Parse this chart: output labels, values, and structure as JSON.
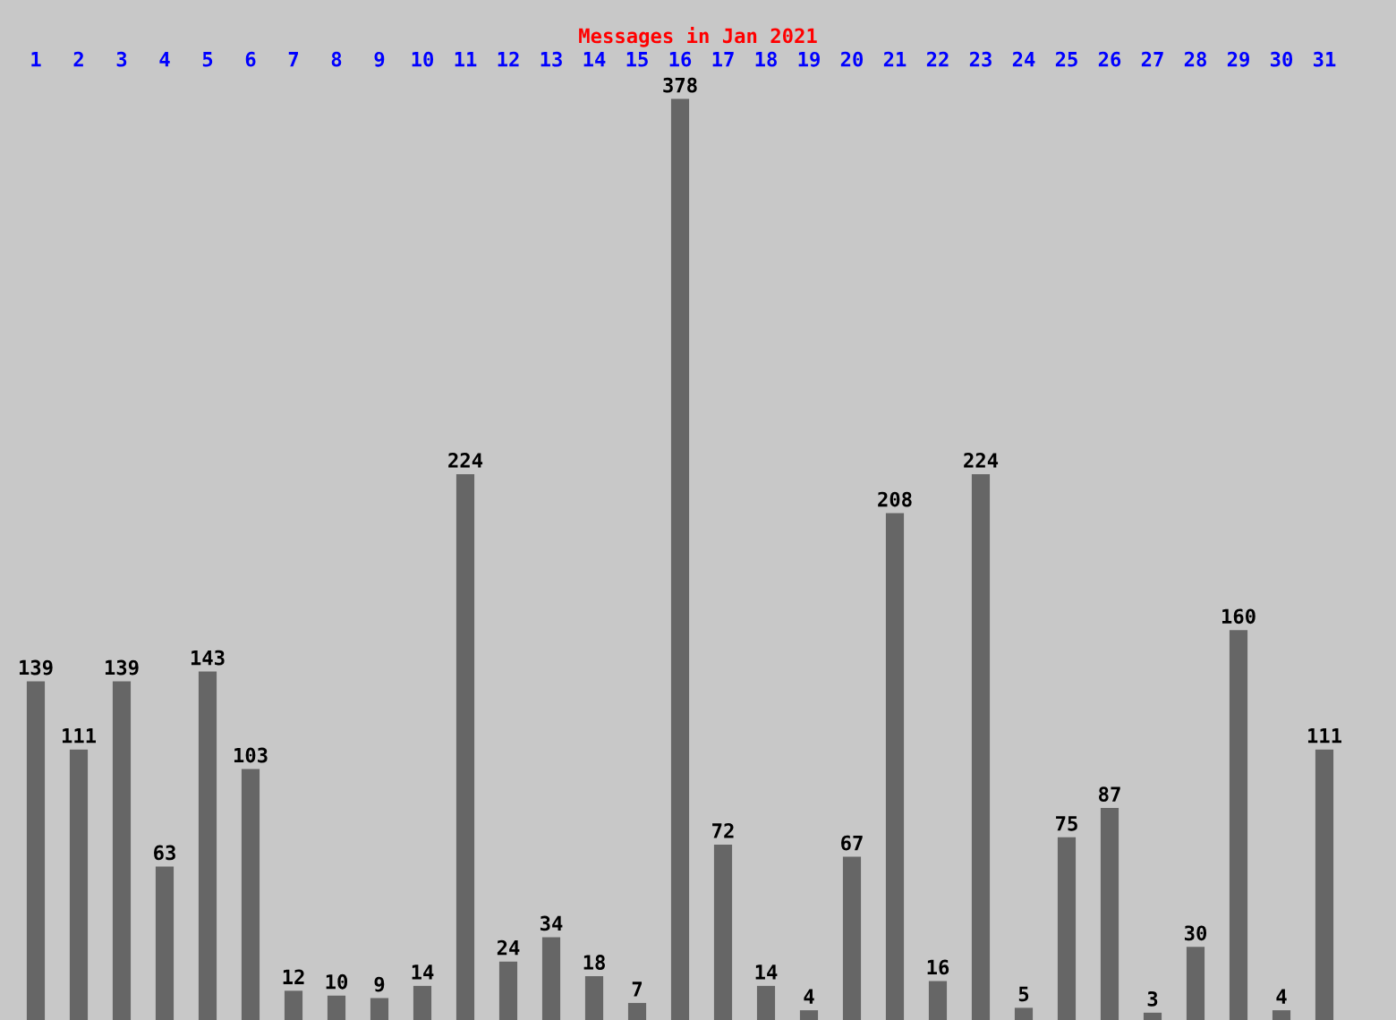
{
  "chart_data": {
    "type": "bar",
    "title": "Messages in Jan 2021",
    "categories": [
      "1",
      "2",
      "3",
      "4",
      "5",
      "6",
      "7",
      "8",
      "9",
      "10",
      "11",
      "12",
      "13",
      "14",
      "15",
      "16",
      "17",
      "18",
      "19",
      "20",
      "21",
      "22",
      "23",
      "24",
      "25",
      "26",
      "27",
      "28",
      "29",
      "30",
      "31"
    ],
    "values": [
      139,
      111,
      139,
      63,
      143,
      103,
      12,
      10,
      9,
      14,
      224,
      24,
      34,
      18,
      7,
      378,
      72,
      14,
      4,
      67,
      208,
      16,
      224,
      5,
      75,
      87,
      3,
      30,
      160,
      4,
      111
    ],
    "color": "#666666",
    "data_labels": true
  }
}
